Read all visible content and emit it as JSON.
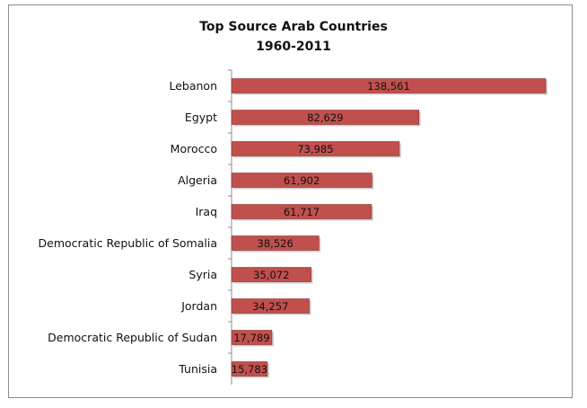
{
  "chart_data": {
    "type": "bar",
    "orientation": "horizontal",
    "title": "Top Source Arab Countries",
    "subtitle": "1960-2011",
    "categories": [
      "Lebanon",
      "Egypt",
      "Morocco",
      "Algeria",
      "Iraq",
      "Democratic Republic of Somalia",
      "Syria",
      "Jordan",
      "Democratic Republic of Sudan",
      "Tunisia"
    ],
    "values": [
      138561,
      82629,
      73985,
      61902,
      61717,
      38526,
      35072,
      34257,
      17789,
      15783
    ],
    "value_labels": [
      "138,561",
      "82,629",
      "73,985",
      "61,902",
      "61,717",
      "38,526",
      "35,072",
      "34,257",
      "17,789",
      "15,783"
    ],
    "xlim": [
      0,
      140000
    ],
    "grid": false,
    "legend": "none",
    "colors": {
      "bar": "#c0504d",
      "bar_edge": "#8f2f2d",
      "shadow": "#cfcfcf",
      "axis": "#8c8c8c"
    }
  }
}
